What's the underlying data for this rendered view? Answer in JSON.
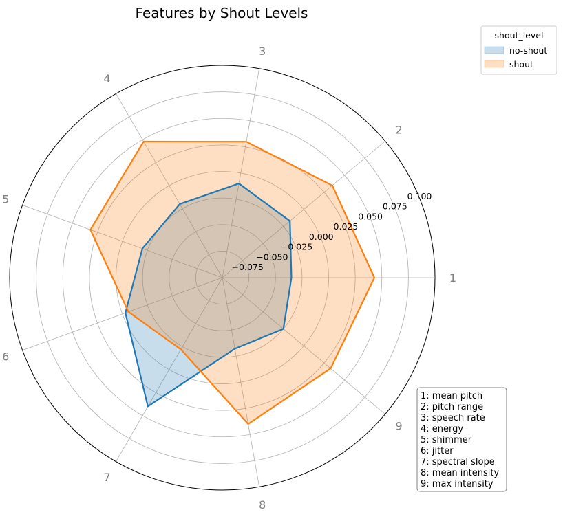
{
  "chart_data": {
    "type": "radar",
    "title": "Features by Shout Levels",
    "axes": [
      "1",
      "2",
      "3",
      "4",
      "5",
      "6",
      "7",
      "8",
      "9"
    ],
    "rlim": [
      -0.1,
      0.1
    ],
    "rticks": [
      -0.075,
      -0.05,
      -0.025,
      0.0,
      0.025,
      0.05,
      0.075,
      0.1
    ],
    "rtick_labels": [
      "−0.075",
      "−0.050",
      "−0.025",
      "0.000",
      "0.025",
      "0.050",
      "0.075",
      "0.100"
    ],
    "grid": true,
    "legend": {
      "title": "shout_level",
      "placement": "top-right",
      "entries": [
        "no-shout",
        "shout"
      ]
    },
    "series": [
      {
        "name": "no-shout",
        "color": "#1f77b4",
        "values": [
          -0.035,
          -0.017,
          -0.01,
          -0.02,
          -0.02,
          -0.003,
          0.04,
          -0.032,
          -0.025
        ]
      },
      {
        "name": "shout",
        "color": "#ff7f0e",
        "values": [
          0.043,
          0.035,
          0.03,
          0.048,
          0.032,
          -0.006,
          -0.022,
          0.04,
          0.033
        ]
      }
    ],
    "feature_legend": [
      "1: mean pitch",
      "2: pitch range",
      "3: speech rate",
      "4: energy",
      "5: shimmer",
      "6: jitter",
      "7: spectral slope",
      "8: mean intensity",
      "9: max intensity"
    ]
  }
}
